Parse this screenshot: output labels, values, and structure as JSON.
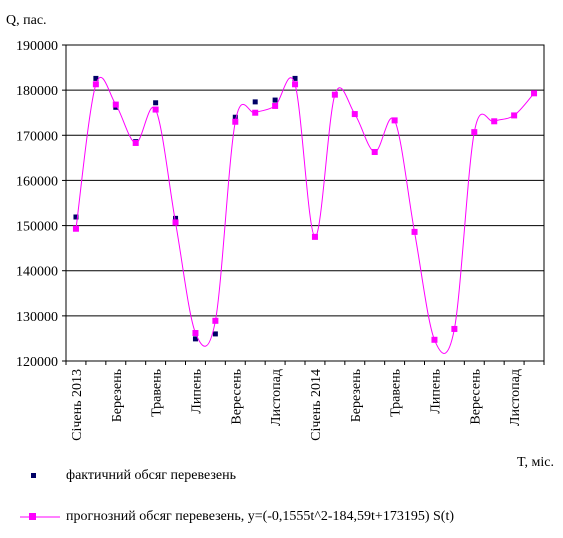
{
  "chart_data": {
    "type": "line",
    "ylabel": "Q, пас.",
    "xlabel": "T, міс.",
    "ylim": [
      120000,
      190000
    ],
    "yticks": [
      "120000",
      "130000",
      "140000",
      "150000",
      "160000",
      "170000",
      "180000",
      "190000"
    ],
    "grid": "horizontal",
    "legend_position": "bottom",
    "x": [
      1,
      2,
      3,
      4,
      5,
      6,
      7,
      8,
      9,
      10,
      11,
      12,
      13,
      14,
      15,
      16,
      17,
      18,
      19,
      20,
      21,
      22,
      23,
      24
    ],
    "xtick_labels": [
      {
        "x": 1,
        "label": "Січень 2013"
      },
      {
        "x": 3,
        "label": "Березень"
      },
      {
        "x": 5,
        "label": "Травень"
      },
      {
        "x": 7,
        "label": "Липень"
      },
      {
        "x": 9,
        "label": "Вересень"
      },
      {
        "x": 11,
        "label": "Листопад"
      },
      {
        "x": 13,
        "label": "Січень 2014"
      },
      {
        "x": 15,
        "label": "Березень"
      },
      {
        "x": 17,
        "label": "Травень"
      },
      {
        "x": 19,
        "label": "Липень"
      },
      {
        "x": 21,
        "label": "Вересень"
      },
      {
        "x": 23,
        "label": "Листопад"
      }
    ],
    "series": [
      {
        "name": "фактичний обсяг перевезень",
        "style": "scatter",
        "color": "#000066",
        "x": [
          1,
          2,
          3,
          4,
          5,
          6,
          7,
          8,
          9,
          10,
          11,
          12
        ],
        "values": [
          151900,
          182600,
          176200,
          168600,
          177200,
          151600,
          124900,
          126000,
          174000,
          177400,
          177800,
          182600
        ]
      },
      {
        "name": "прогнозний обсяг перевезень, y=(-0,1555t^2-184,59t+173195) S(t)",
        "style": "line",
        "color": "#ff00ff",
        "x": [
          1,
          2,
          3,
          4,
          5,
          6,
          7,
          8,
          9,
          10,
          11,
          12,
          13,
          14,
          15,
          16,
          17,
          18,
          19,
          20,
          21,
          22,
          23,
          24
        ],
        "values": [
          149300,
          181300,
          176800,
          168300,
          175700,
          150700,
          126200,
          128900,
          173000,
          175000,
          176500,
          181300,
          147500,
          179000,
          174700,
          166300,
          173300,
          148600,
          124700,
          127100,
          170700,
          173100,
          174400,
          179300
        ]
      }
    ]
  }
}
